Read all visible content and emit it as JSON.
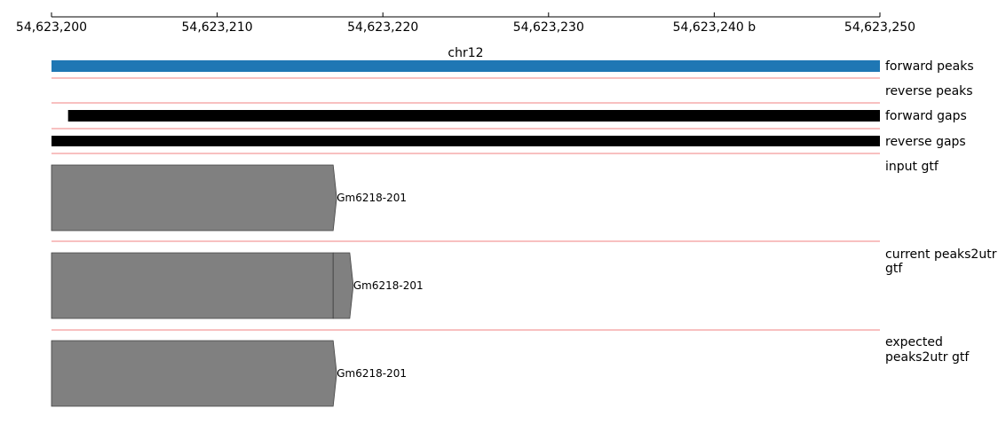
{
  "axis": {
    "start": 54623200,
    "end": 54623250,
    "ticks": [
      {
        "value": 54623200,
        "label": "54,623,200"
      },
      {
        "value": 54623210,
        "label": "54,623,210"
      },
      {
        "value": 54623220,
        "label": "54,623,220"
      },
      {
        "value": 54623230,
        "label": "54,623,230"
      },
      {
        "value": 54623240,
        "label": "54,623,240 b"
      },
      {
        "value": 54623250,
        "label": "54,623,250"
      }
    ]
  },
  "chromosome": "chr12",
  "colors": {
    "forward_peaks": "#1f77b4",
    "gaps": "#000000",
    "feature_fill": "#808080",
    "feature_stroke": "#404040",
    "separator": "#f08080",
    "axis": "#000000"
  },
  "tracks": {
    "forward_peaks": {
      "label": "forward peaks",
      "intervals": [
        {
          "start": 54623200,
          "end": 54623250
        }
      ]
    },
    "reverse_peaks": {
      "label": "reverse peaks",
      "intervals": []
    },
    "forward_gaps": {
      "label": "forward gaps",
      "intervals": [
        {
          "start": 54623201,
          "end": 54623250
        }
      ]
    },
    "reverse_gaps": {
      "label": "reverse gaps",
      "intervals": [
        {
          "start": 54623200,
          "end": 54623250
        }
      ]
    },
    "input_gtf": {
      "label": "input gtf",
      "features": [
        {
          "name": "Gm6218-201",
          "strand": "+",
          "segments": [
            {
              "start": 54623200,
              "end": 54623217
            }
          ]
        }
      ]
    },
    "current_gtf": {
      "label_lines": [
        "current peaks2utr",
        "gtf"
      ],
      "features": [
        {
          "name": "Gm6218-201",
          "strand": "+",
          "segments": [
            {
              "start": 54623200,
              "end": 54623217
            },
            {
              "start": 54623217,
              "end": 54623218
            }
          ]
        }
      ]
    },
    "expected_gtf": {
      "label_lines": [
        "expected",
        "peaks2utr gtf"
      ],
      "features": [
        {
          "name": "Gm6218-201",
          "strand": "+",
          "segments": [
            {
              "start": 54623200,
              "end": 54623217
            }
          ]
        }
      ]
    }
  }
}
